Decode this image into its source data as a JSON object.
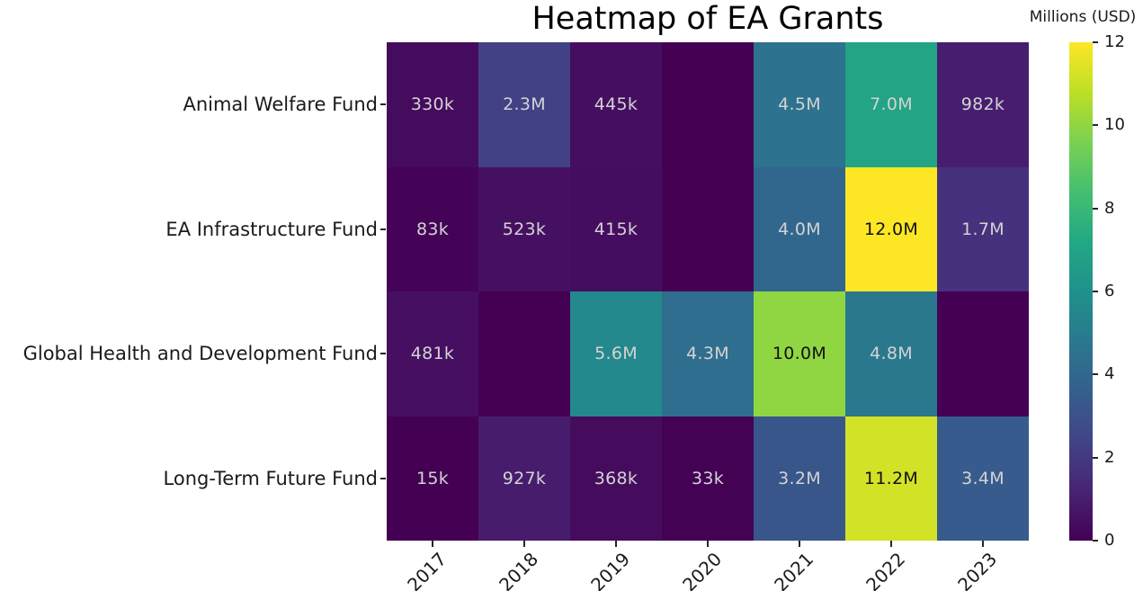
{
  "title": "Heatmap of EA Grants",
  "colorbar": {
    "label": "Millions (USD)",
    "ticks": [
      0,
      2,
      4,
      6,
      8,
      10,
      12
    ],
    "min": 0,
    "max": 12
  },
  "colors": {
    "colormap_name": "viridis",
    "viridis_stops": [
      "#440154",
      "#482475",
      "#414487",
      "#355f8d",
      "#2a788e",
      "#20918c",
      "#22a884",
      "#44bf70",
      "#7ad151",
      "#bddf26",
      "#fde725"
    ],
    "annotation_light_text": "#d3d3d3",
    "annotation_dark_text": "#111111",
    "axis_text": "#1a1a1a",
    "background": "#ffffff"
  },
  "chart_data": {
    "type": "heatmap",
    "title": "Heatmap of EA Grants",
    "x_categories": [
      "2017",
      "2018",
      "2019",
      "2020",
      "2021",
      "2022",
      "2023"
    ],
    "y_categories": [
      "Animal Welfare Fund",
      "EA Infrastructure Fund",
      "Global Health and Development Fund",
      "Long-Term Future Fund"
    ],
    "values_millions_usd": [
      [
        0.33,
        2.3,
        0.445,
        0,
        4.5,
        7.0,
        0.982
      ],
      [
        0.083,
        0.523,
        0.415,
        0,
        4.0,
        12.0,
        1.7
      ],
      [
        0.481,
        0,
        5.6,
        4.3,
        10.0,
        4.8,
        0
      ],
      [
        0.015,
        0.927,
        0.368,
        0.033,
        3.2,
        11.2,
        3.4
      ]
    ],
    "cell_labels": [
      [
        "330k",
        "2.3M",
        "445k",
        "",
        "4.5M",
        "7.0M",
        "982k"
      ],
      [
        "83k",
        "523k",
        "415k",
        "",
        "4.0M",
        "12.0M",
        "1.7M"
      ],
      [
        "481k",
        "",
        "5.6M",
        "4.3M",
        "10.0M",
        "4.8M",
        ""
      ],
      [
        "15k",
        "927k",
        "368k",
        "33k",
        "3.2M",
        "11.2M",
        "3.4M"
      ]
    ],
    "colormap": "viridis",
    "vmin": 0,
    "vmax": 12,
    "colorbar_label": "Millions (USD)",
    "colorbar_ticks": [
      0,
      2,
      4,
      6,
      8,
      10,
      12
    ],
    "x_tick_rotation_deg": 45,
    "legend_position": "right-colorbar",
    "grid": false
  }
}
